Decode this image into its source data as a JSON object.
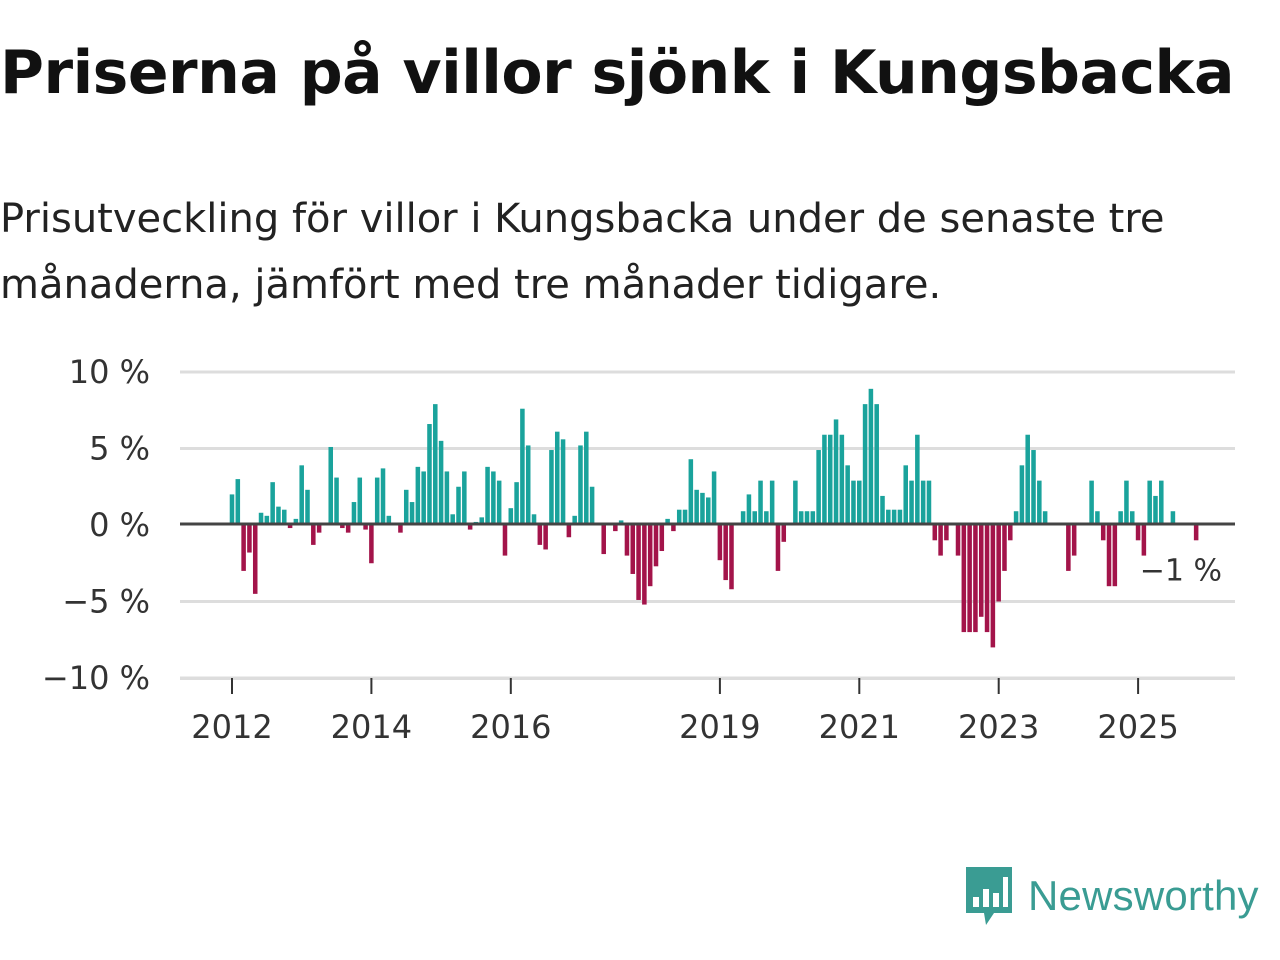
{
  "title": "Priserna på villor sjönk i Kungsbacka",
  "subtitle": "Prisutveckling för villor i Kungsbacka under de senaste tre månaderna, jämfört med tre månader tidigare.",
  "brand": {
    "name": "Newsworthy",
    "icon": "newsworthy-logo-icon",
    "color": "#3a9c93"
  },
  "colors": {
    "positive": "#1aa39c",
    "negative": "#a3144a",
    "grid": "#dddddd",
    "baseline": "#444444"
  },
  "chart_data": {
    "type": "bar",
    "title": "Priserna på villor sjönk i Kungsbacka",
    "xlabel": "",
    "ylabel": "",
    "ylim": [
      -10,
      10
    ],
    "y_ticks": [
      10,
      5,
      0,
      -5,
      -10
    ],
    "y_tick_labels": [
      "10 %",
      "5 %",
      "0 %",
      "−5 %",
      "−10 %"
    ],
    "x_ticks": [
      2012,
      2014,
      2016,
      2019,
      2021,
      2023,
      2025
    ],
    "x_tick_labels": [
      "2012",
      "2014",
      "2016",
      "2019",
      "2021",
      "2023",
      "2025"
    ],
    "x_start": 2012,
    "x_step_per_bar": 0.08333,
    "annotation": {
      "label": "−1 %",
      "value": -1
    },
    "values": [
      2.0,
      3.0,
      -3.0,
      -1.8,
      -4.5,
      0.8,
      0.6,
      2.8,
      1.2,
      1.0,
      -0.2,
      0.4,
      3.9,
      2.3,
      -1.3,
      -0.5,
      0.0,
      5.1,
      3.1,
      -0.2,
      -0.5,
      1.5,
      3.1,
      -0.3,
      -2.5,
      3.1,
      3.7,
      0.6,
      0.0,
      -0.5,
      2.3,
      1.5,
      3.8,
      3.5,
      6.6,
      7.9,
      5.5,
      3.5,
      0.7,
      2.5,
      3.5,
      -0.3,
      0.2,
      0.5,
      3.8,
      3.5,
      2.9,
      -2.0,
      1.1,
      2.8,
      7.6,
      5.2,
      0.7,
      -1.3,
      -1.6,
      4.9,
      6.1,
      5.6,
      -0.8,
      0.6,
      5.2,
      6.1,
      2.5,
      0.0,
      -1.9,
      0.0,
      -0.4,
      0.3,
      -2.0,
      -3.2,
      -4.9,
      -5.2,
      -4.0,
      -2.7,
      -1.7,
      0.4,
      -0.4,
      1.0,
      1.0,
      4.3,
      2.3,
      2.1,
      1.8,
      3.5,
      -2.3,
      -3.6,
      -4.2,
      0.0,
      0.9,
      2.0,
      0.9,
      2.9,
      0.9,
      2.9,
      -3.0,
      -1.1,
      0.0,
      2.9,
      0.9,
      0.9,
      0.9,
      4.9,
      5.9,
      5.9,
      6.9,
      5.9,
      3.9,
      2.9,
      2.9,
      7.9,
      8.9,
      7.9,
      1.9,
      1.0,
      1.0,
      1.0,
      3.9,
      2.9,
      5.9,
      2.9,
      2.9,
      -1.0,
      -2.0,
      -1.0,
      0.0,
      -2.0,
      -7.0,
      -7.0,
      -7.0,
      -6.0,
      -7.0,
      -8.0,
      -5.0,
      -3.0,
      -1.0,
      0.9,
      3.9,
      5.9,
      4.9,
      2.9,
      0.9,
      0.0,
      0.0,
      0.0,
      -3.0,
      -2.0,
      0.0,
      0.0,
      2.9,
      0.9,
      -1.0,
      -4.0,
      -4.0,
      0.9,
      2.9,
      0.9,
      -1.0,
      -2.0,
      2.9,
      1.9,
      2.9,
      0.0,
      0.9,
      0.0,
      0.0,
      0.0,
      -1.0
    ]
  }
}
